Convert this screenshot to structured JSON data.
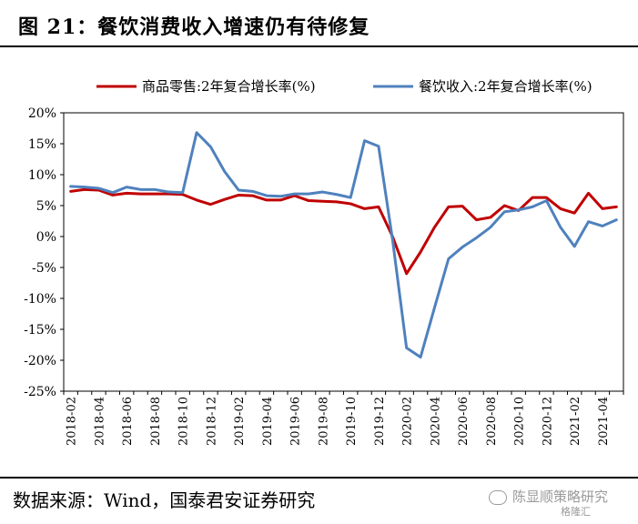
{
  "figure": {
    "title": "图 21：餐饮消费收入增速仍有待修复",
    "source": "数据来源：Wind，国泰君安证券研究",
    "watermark": "陈显顺策略研究",
    "watermark_sub": "格隆汇"
  },
  "chart_data": {
    "type": "line",
    "title": "",
    "xlabel": "",
    "ylabel": "",
    "ylim": [
      -25,
      20
    ],
    "y_ticks": [
      20,
      15,
      10,
      5,
      0,
      -5,
      -10,
      -15,
      -20,
      -25
    ],
    "y_tick_labels": [
      "20%",
      "15%",
      "10%",
      "5%",
      "0%",
      "-5%",
      "-10%",
      "-15%",
      "-20%",
      "-25%"
    ],
    "x_tick_labels": [
      "2018-02",
      "2018-04",
      "2018-06",
      "2018-08",
      "2018-10",
      "2018-12",
      "2019-02",
      "2019-04",
      "2019-06",
      "2019-08",
      "2019-10",
      "2019-12",
      "2020-02",
      "2020-04",
      "2020-06",
      "2020-08",
      "2020-10",
      "2020-12",
      "2021-02",
      "2021-04"
    ],
    "x": [
      "2018-02",
      "2018-03",
      "2018-04",
      "2018-05",
      "2018-06",
      "2018-07",
      "2018-08",
      "2018-09",
      "2018-10",
      "2018-11",
      "2018-12",
      "2019-01",
      "2019-02",
      "2019-03",
      "2019-04",
      "2019-05",
      "2019-06",
      "2019-07",
      "2019-08",
      "2019-09",
      "2019-10",
      "2019-11",
      "2019-12",
      "2020-01",
      "2020-02",
      "2020-03",
      "2020-04",
      "2020-05",
      "2020-06",
      "2020-07",
      "2020-08",
      "2020-09",
      "2020-10",
      "2020-11",
      "2020-12",
      "2021-01",
      "2021-02",
      "2021-03",
      "2021-04",
      "2021-05"
    ],
    "grid": false,
    "legend_position": "top",
    "series": [
      {
        "name": "商品零售:2年复合增长率(%)",
        "color": "#c00000",
        "values": [
          7.3,
          7.6,
          7.5,
          6.7,
          7.0,
          6.9,
          6.9,
          6.9,
          6.8,
          5.9,
          5.2,
          6.0,
          6.7,
          6.6,
          5.9,
          5.9,
          6.6,
          5.8,
          5.7,
          5.6,
          5.3,
          4.5,
          4.8,
          0.0,
          -6.0,
          -2.5,
          1.5,
          4.8,
          4.9,
          2.7,
          3.1,
          5.0,
          4.2,
          6.3,
          6.3,
          4.5,
          3.8,
          7.0,
          4.5,
          4.8
        ]
      },
      {
        "name": "餐饮收入:2年复合增长率(%)",
        "color": "#4f81bd",
        "values": [
          8.1,
          8.0,
          7.8,
          7.1,
          8.0,
          7.6,
          7.6,
          7.2,
          7.1,
          16.8,
          14.5,
          10.5,
          7.5,
          7.3,
          6.6,
          6.5,
          6.9,
          6.9,
          7.2,
          6.8,
          6.3,
          15.5,
          14.6,
          -0.5,
          -18.0,
          -19.5,
          -11.5,
          -3.6,
          -1.7,
          -0.2,
          1.5,
          4.0,
          4.3,
          4.8,
          5.8,
          1.5,
          -1.6,
          2.4,
          1.7,
          2.7
        ]
      }
    ]
  }
}
